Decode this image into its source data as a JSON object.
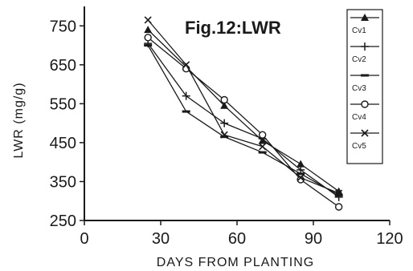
{
  "chart_data": {
    "type": "line",
    "title": "Fig.12:LWR",
    "xlabel": "DAYS FROM PLANTING",
    "ylabel": "LWR (mg/g)",
    "xlim": [
      0,
      120
    ],
    "ylim": [
      250,
      800
    ],
    "xticks": [
      0,
      30,
      60,
      90,
      120
    ],
    "yticks": [
      250,
      350,
      450,
      550,
      650,
      750
    ],
    "xtick_labels": [
      "0",
      "30",
      "60",
      "90",
      "120"
    ],
    "ytick_labels": [
      "250",
      "350",
      "450",
      "550",
      "650",
      "750"
    ],
    "grid": false,
    "legend_position": "top-right",
    "x": [
      25,
      40,
      55,
      70,
      85,
      100
    ],
    "series": [
      {
        "name": "Cv1",
        "marker": "triangle",
        "values": [
          740,
          645,
          545,
          455,
          395,
          325
        ]
      },
      {
        "name": "Cv2",
        "marker": "plus",
        "values": [
          705,
          570,
          500,
          460,
          380,
          310
        ]
      },
      {
        "name": "Cv3",
        "marker": "dash",
        "values": [
          700,
          530,
          465,
          425,
          370,
          315
        ]
      },
      {
        "name": "Cv4",
        "marker": "circle",
        "values": [
          720,
          640,
          560,
          470,
          355,
          285
        ]
      },
      {
        "name": "Cv5",
        "marker": "x",
        "values": [
          765,
          650,
          470,
          440,
          360,
          320
        ]
      }
    ]
  }
}
